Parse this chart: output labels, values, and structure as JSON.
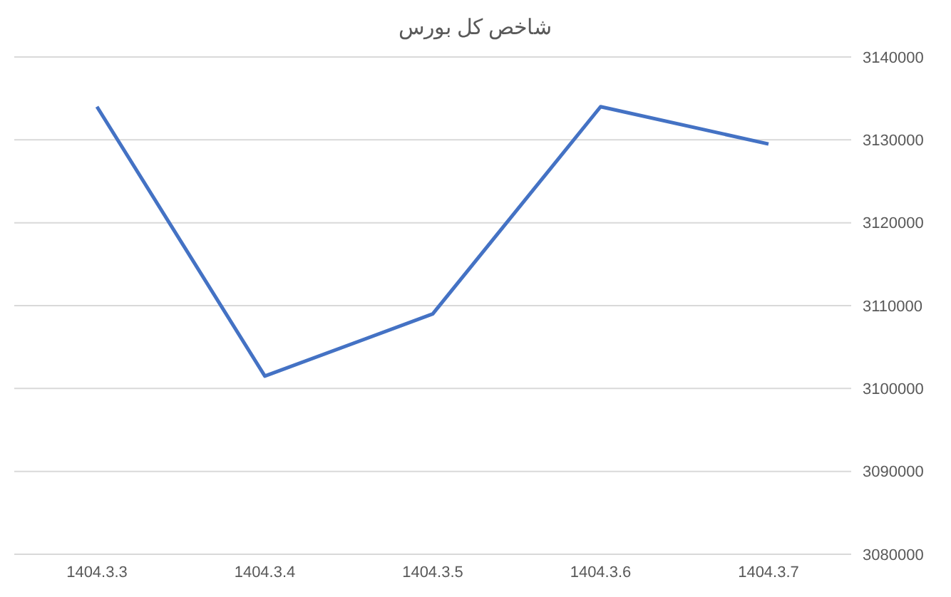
{
  "chart_data": {
    "type": "line",
    "title": "شاخص کل بورس",
    "categories": [
      "1404.3.3",
      "1404.3.4",
      "1404.3.5",
      "1404.3.6",
      "1404.3.7"
    ],
    "series": [
      {
        "color": "#4472c4",
        "values": [
          3134000,
          3101500,
          3109000,
          3134000,
          3129500
        ]
      }
    ],
    "ylim": [
      3080000,
      3140000
    ],
    "yticks": [
      3080000,
      3090000,
      3100000,
      3110000,
      3120000,
      3130000,
      3140000
    ],
    "grid": "y",
    "marker": "none",
    "line_style": "solid"
  }
}
